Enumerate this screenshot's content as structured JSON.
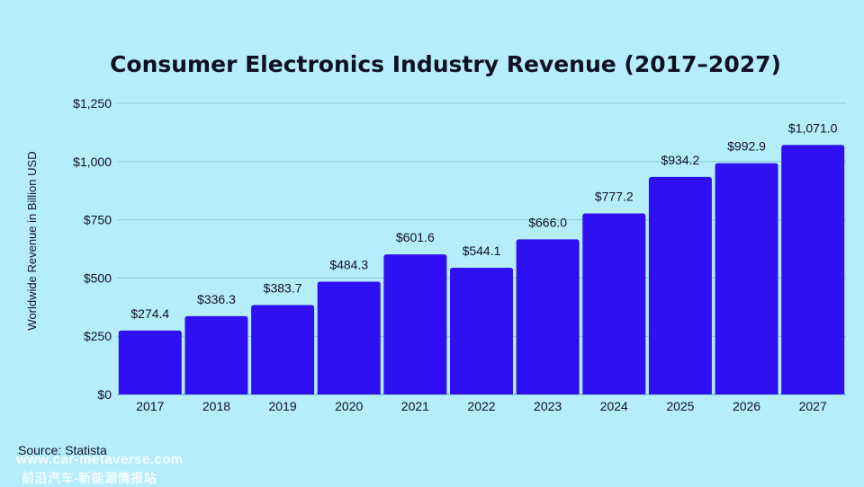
{
  "chart_data": {
    "type": "bar",
    "title": "Consumer Electronics Industry Revenue (2017–2027)",
    "xlabel": "",
    "ylabel": "Worldwide Revenue in Billion USD",
    "categories": [
      "2017",
      "2018",
      "2019",
      "2020",
      "2021",
      "2022",
      "2023",
      "2024",
      "2025",
      "2026",
      "2027"
    ],
    "values": [
      274.4,
      336.3,
      383.7,
      484.3,
      601.6,
      544.1,
      666.0,
      777.2,
      934.2,
      992.9,
      1071.0
    ],
    "value_labels": [
      "$274.4",
      "$336.3",
      "$383.7",
      "$484.3",
      "$601.6",
      "$544.1",
      "$666.0",
      "$777.2",
      "$934.2",
      "$992.9",
      "$1,071.0"
    ],
    "ylim": [
      0,
      1250
    ],
    "yticks": [
      0,
      250,
      500,
      750,
      1000,
      1250
    ],
    "ytick_labels": [
      "$0",
      "$250",
      "$500",
      "$750",
      "$1,000",
      "$1,250"
    ],
    "bar_color": "#2f10f2",
    "background_color": "#b5eefa",
    "grid": true
  },
  "footer": {
    "source": "Source: Statista"
  },
  "watermark": {
    "url": "www.car-metaverse.com",
    "subtitle": "前沿汽车-新能源情报站"
  }
}
